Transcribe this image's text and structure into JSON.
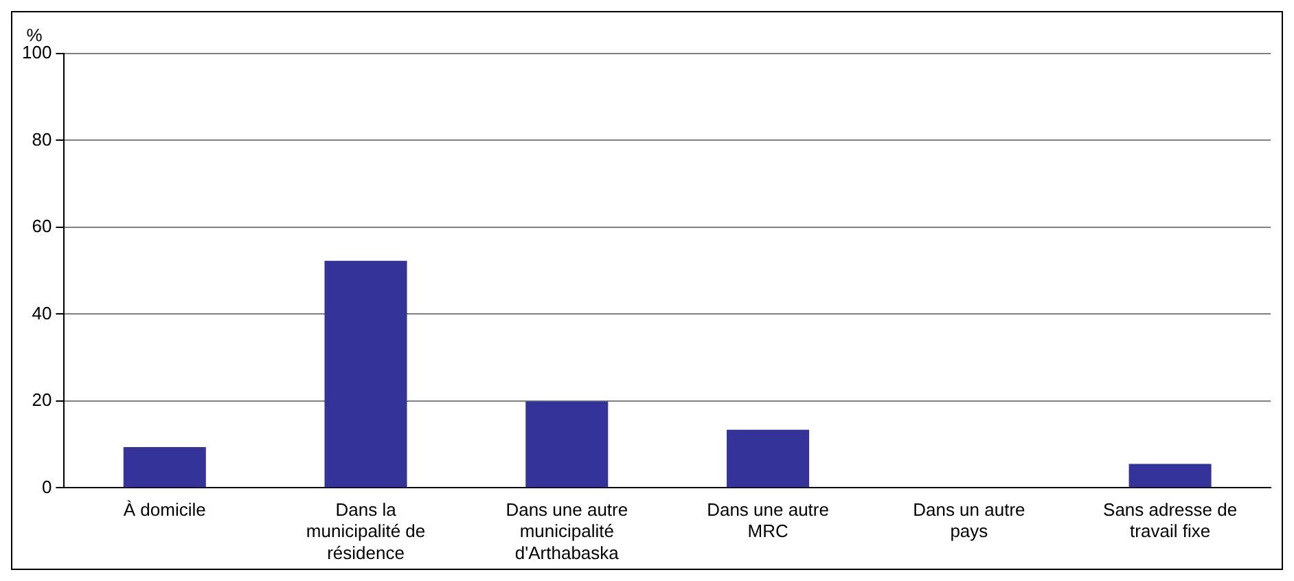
{
  "chart_data": {
    "type": "bar",
    "ylabel": "%",
    "categories": [
      "À domicile",
      "Dans la municipalité de résidence",
      "Dans une autre municipalité d'Arthabaska",
      "Dans une autre MRC",
      "Dans un autre pays",
      "Sans adresse de travail fixe"
    ],
    "values": [
      9.4,
      52.3,
      19.9,
      13.4,
      0,
      5.5
    ],
    "color": "#333399",
    "ylim": [
      0,
      100
    ],
    "yticks": [
      0,
      20,
      40,
      60,
      80,
      100
    ],
    "grid": "y"
  }
}
